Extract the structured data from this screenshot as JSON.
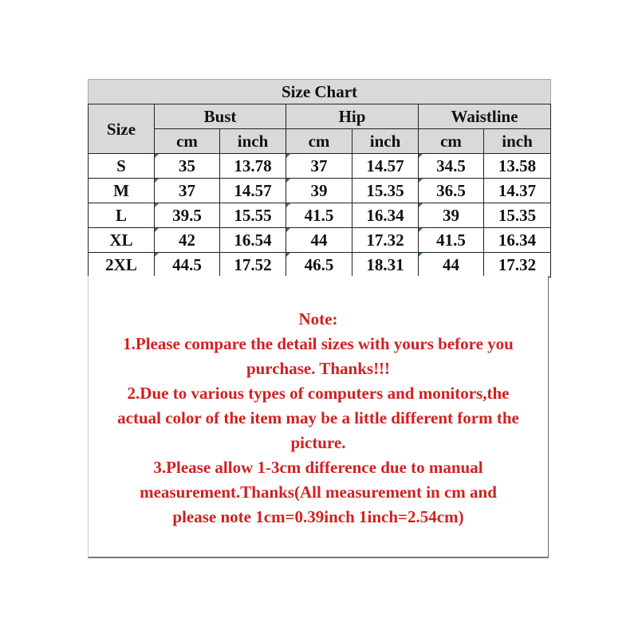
{
  "title": "Size Chart",
  "headers": {
    "size": "Size",
    "groups": [
      "Bust",
      "Hip",
      "Waistline"
    ],
    "units": [
      "cm",
      "inch",
      "cm",
      "inch",
      "cm",
      "inch"
    ]
  },
  "rows": [
    {
      "size": "S",
      "values": [
        "35",
        "13.78",
        "37",
        "14.57",
        "34.5",
        "13.58"
      ]
    },
    {
      "size": "M",
      "values": [
        "37",
        "14.57",
        "39",
        "15.35",
        "36.5",
        "14.37"
      ]
    },
    {
      "size": "L",
      "values": [
        "39.5",
        "15.55",
        "41.5",
        "16.34",
        "39",
        "15.35"
      ]
    },
    {
      "size": "XL",
      "values": [
        "42",
        "16.54",
        "44",
        "17.32",
        "41.5",
        "16.34"
      ]
    },
    {
      "size": "2XL",
      "values": [
        "44.5",
        "17.52",
        "46.5",
        "18.31",
        "44",
        "17.32"
      ]
    }
  ],
  "note": {
    "lines": [
      "Note:",
      "1.Please compare the detail sizes with yours before you",
      "purchase. Thanks!!!",
      "2.Due to various types of computers and monitors,the",
      "actual color of the item may be a little different form the",
      "picture.",
      "3.Please allow 1-3cm difference due to manual",
      "measurement.Thanks(All measurement in cm and",
      "please note 1cm=0.39inch 1inch=2.54cm)"
    ],
    "color": "#d41f1f"
  },
  "colors": {
    "header_bg": "#d9d9d9",
    "text": "#111111"
  }
}
